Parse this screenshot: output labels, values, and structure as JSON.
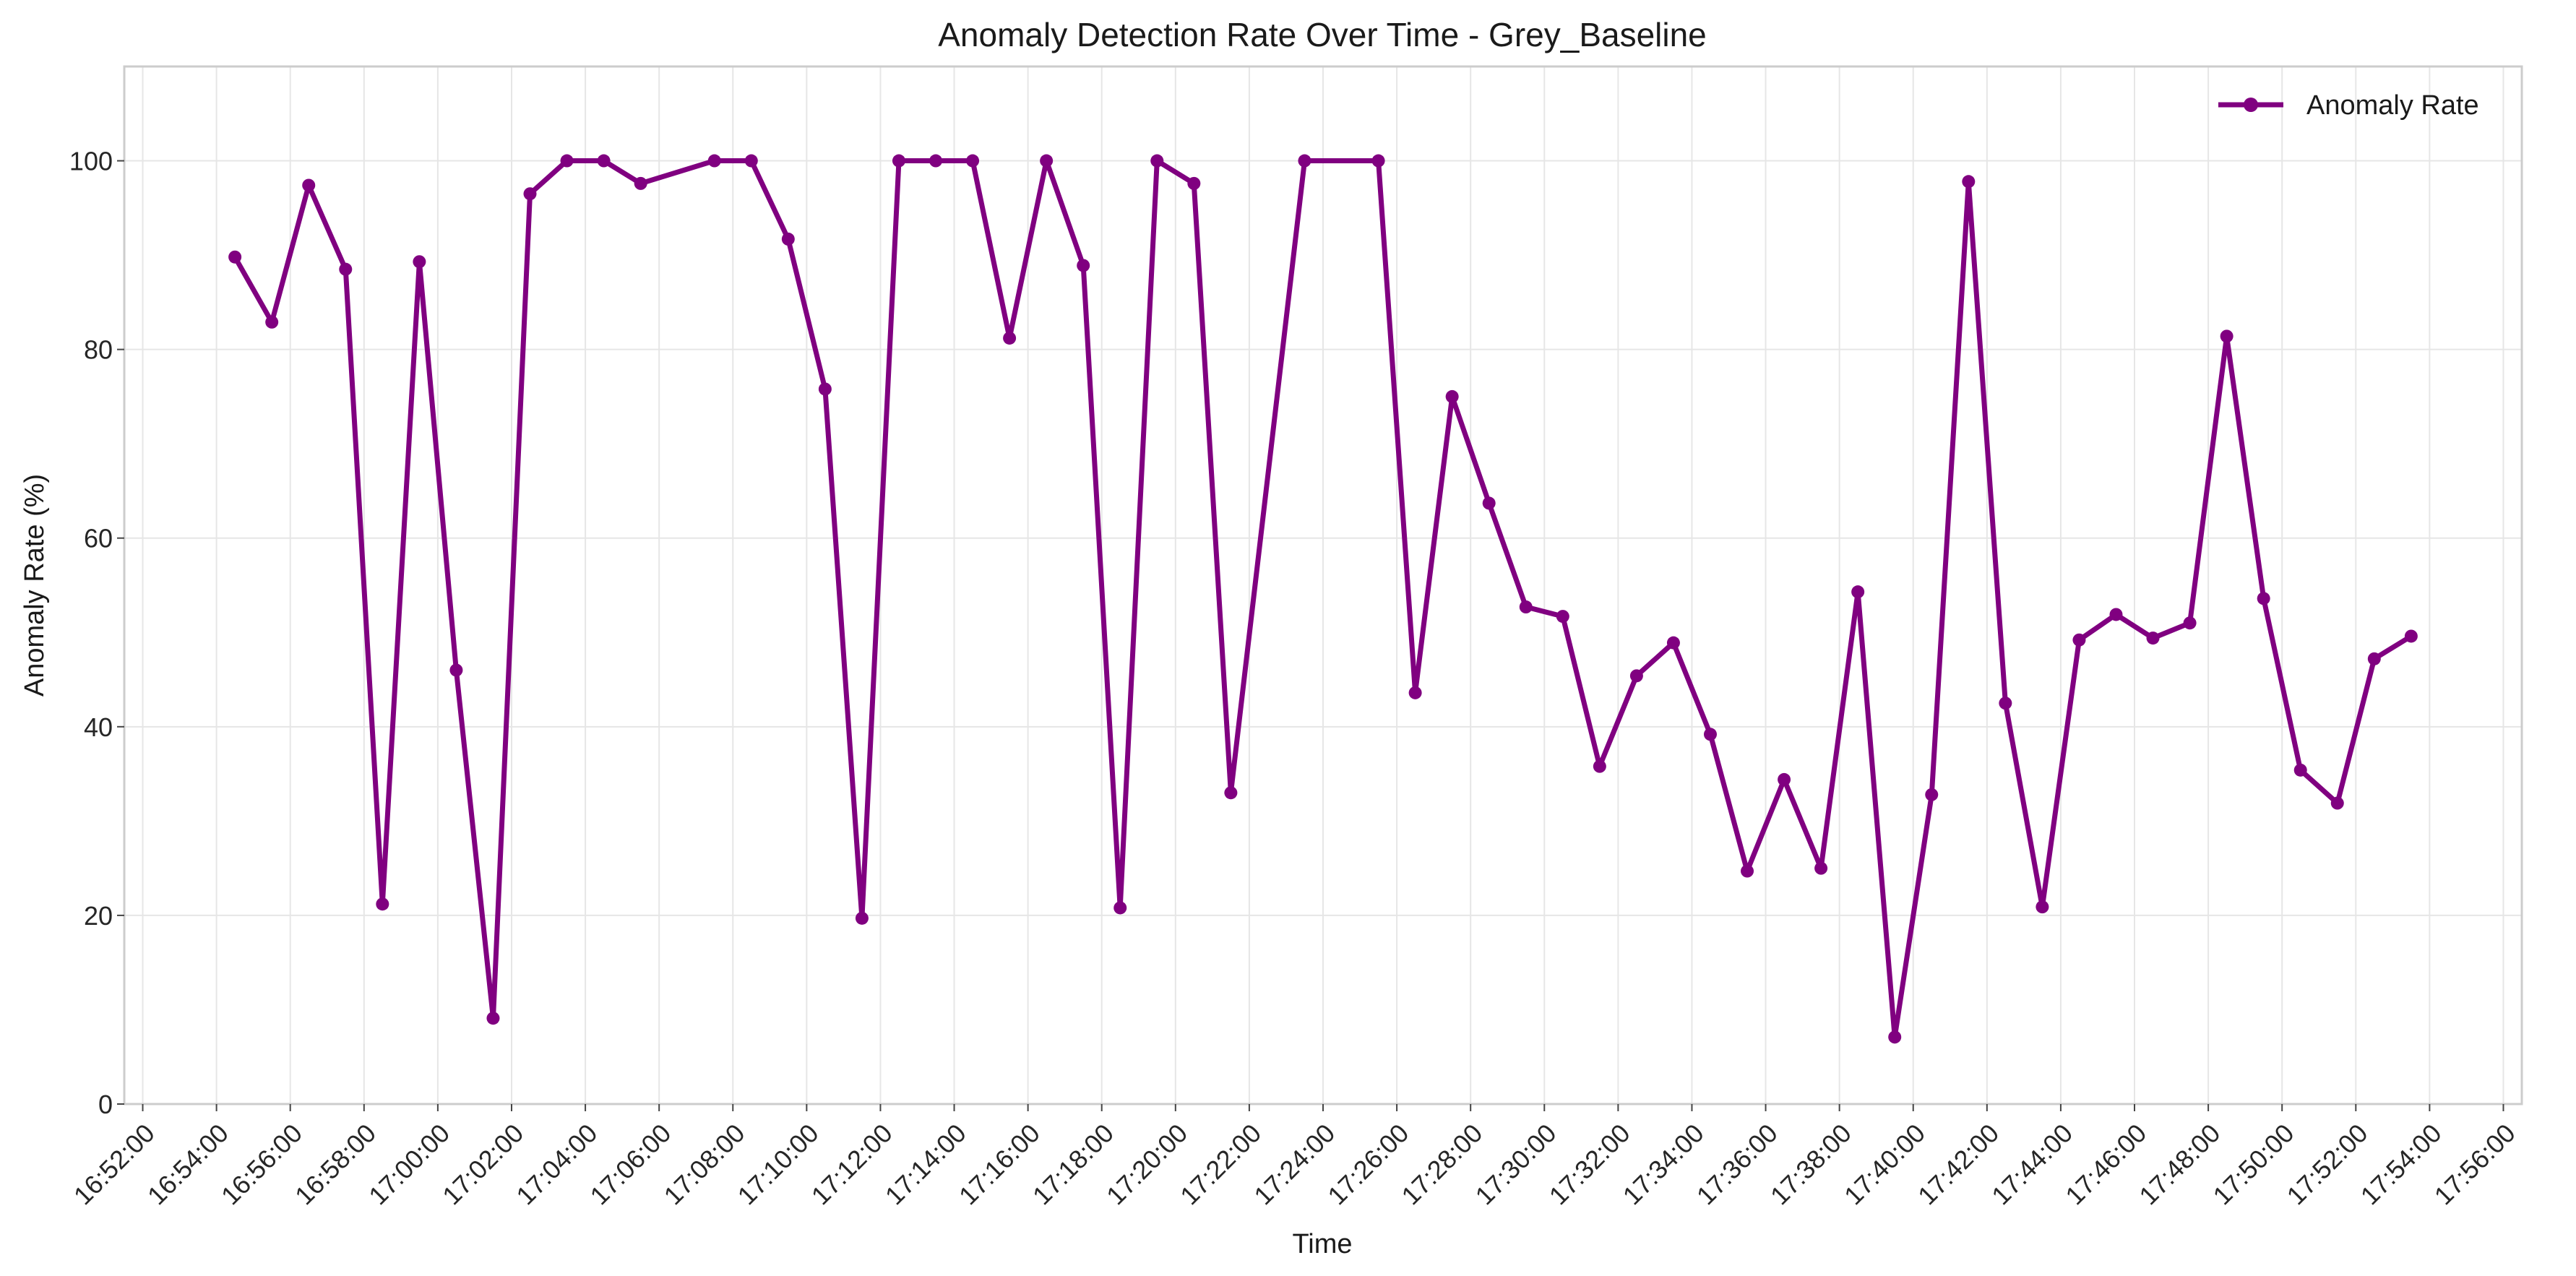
{
  "chart_data": {
    "type": "line",
    "title": "Anomaly Detection Rate Over Time - Grey_Baseline",
    "xlabel": "Time",
    "ylabel": "Anomaly Rate (%)",
    "ylim": [
      0,
      110
    ],
    "yticks": [
      0,
      20,
      40,
      60,
      80,
      100
    ],
    "xlim": [
      "16:51:30",
      "17:56:30"
    ],
    "xticks": [
      "16:52:00",
      "16:54:00",
      "16:56:00",
      "16:58:00",
      "17:00:00",
      "17:02:00",
      "17:04:00",
      "17:06:00",
      "17:08:00",
      "17:10:00",
      "17:12:00",
      "17:14:00",
      "17:16:00",
      "17:18:00",
      "17:20:00",
      "17:22:00",
      "17:24:00",
      "17:26:00",
      "17:28:00",
      "17:30:00",
      "17:32:00",
      "17:34:00",
      "17:36:00",
      "17:38:00",
      "17:40:00",
      "17:42:00",
      "17:44:00",
      "17:46:00",
      "17:48:00",
      "17:50:00",
      "17:52:00",
      "17:54:00",
      "17:56:00"
    ],
    "grid": true,
    "legend_position": "top-right",
    "series": [
      {
        "name": "Anomaly Rate",
        "color": "#800080",
        "marker": "circle",
        "points": [
          {
            "x": "16:54:30",
            "y": 89.8
          },
          {
            "x": "16:55:30",
            "y": 82.9
          },
          {
            "x": "16:56:30",
            "y": 97.4
          },
          {
            "x": "16:57:30",
            "y": 88.5
          },
          {
            "x": "16:58:30",
            "y": 21.2
          },
          {
            "x": "16:59:30",
            "y": 89.3
          },
          {
            "x": "17:00:30",
            "y": 46.0
          },
          {
            "x": "17:01:30",
            "y": 9.1
          },
          {
            "x": "17:02:30",
            "y": 96.5
          },
          {
            "x": "17:03:30",
            "y": 100.0
          },
          {
            "x": "17:04:30",
            "y": 100.0
          },
          {
            "x": "17:05:30",
            "y": 97.6
          },
          {
            "x": "17:07:30",
            "y": 100.0
          },
          {
            "x": "17:08:30",
            "y": 100.0
          },
          {
            "x": "17:09:30",
            "y": 91.7
          },
          {
            "x": "17:10:30",
            "y": 75.8
          },
          {
            "x": "17:11:30",
            "y": 19.7
          },
          {
            "x": "17:12:30",
            "y": 100.0
          },
          {
            "x": "17:13:30",
            "y": 100.0
          },
          {
            "x": "17:14:30",
            "y": 100.0
          },
          {
            "x": "17:15:30",
            "y": 81.2
          },
          {
            "x": "17:16:30",
            "y": 100.0
          },
          {
            "x": "17:17:30",
            "y": 88.9
          },
          {
            "x": "17:18:30",
            "y": 20.8
          },
          {
            "x": "17:19:30",
            "y": 100.0
          },
          {
            "x": "17:20:30",
            "y": 97.6
          },
          {
            "x": "17:21:30",
            "y": 33.0
          },
          {
            "x": "17:23:30",
            "y": 100.0
          },
          {
            "x": "17:25:30",
            "y": 100.0
          },
          {
            "x": "17:26:30",
            "y": 43.6
          },
          {
            "x": "17:27:30",
            "y": 75.0
          },
          {
            "x": "17:28:30",
            "y": 63.7
          },
          {
            "x": "17:29:30",
            "y": 52.7
          },
          {
            "x": "17:30:30",
            "y": 51.7
          },
          {
            "x": "17:31:30",
            "y": 35.8
          },
          {
            "x": "17:32:30",
            "y": 45.4
          },
          {
            "x": "17:33:30",
            "y": 48.9
          },
          {
            "x": "17:34:30",
            "y": 39.2
          },
          {
            "x": "17:35:30",
            "y": 24.7
          },
          {
            "x": "17:36:30",
            "y": 34.4
          },
          {
            "x": "17:37:30",
            "y": 25.0
          },
          {
            "x": "17:38:30",
            "y": 54.3
          },
          {
            "x": "17:39:30",
            "y": 7.1
          },
          {
            "x": "17:40:30",
            "y": 32.8
          },
          {
            "x": "17:41:30",
            "y": 97.8
          },
          {
            "x": "17:42:30",
            "y": 42.5
          },
          {
            "x": "17:43:30",
            "y": 20.9
          },
          {
            "x": "17:44:30",
            "y": 49.2
          },
          {
            "x": "17:45:30",
            "y": 51.9
          },
          {
            "x": "17:46:30",
            "y": 49.4
          },
          {
            "x": "17:47:30",
            "y": 51.0
          },
          {
            "x": "17:48:30",
            "y": 81.4
          },
          {
            "x": "17:49:30",
            "y": 53.6
          },
          {
            "x": "17:50:30",
            "y": 35.4
          },
          {
            "x": "17:51:30",
            "y": 31.9
          },
          {
            "x": "17:52:30",
            "y": 47.2
          },
          {
            "x": "17:53:30",
            "y": 49.6
          }
        ]
      }
    ]
  }
}
